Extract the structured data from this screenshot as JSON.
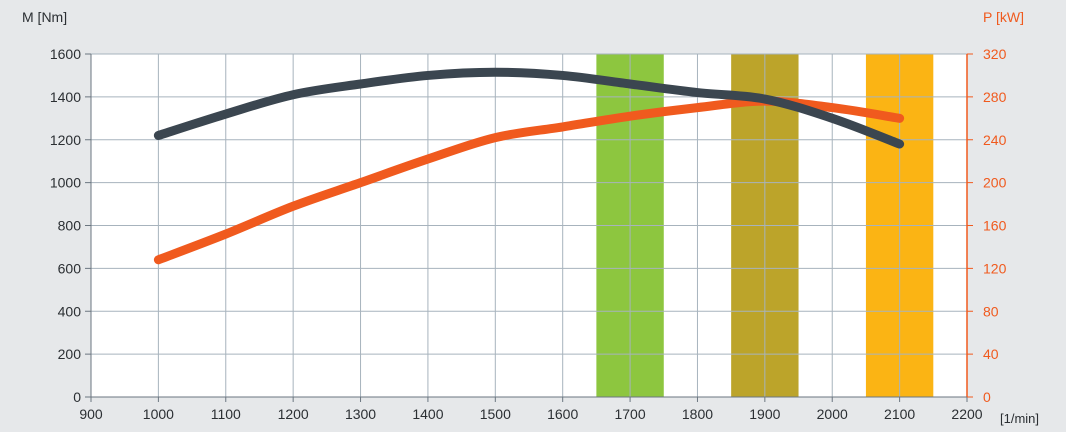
{
  "chart_data": {
    "type": "line",
    "left_axis_label": "M [Nm]",
    "right_axis_label": "P [kW]",
    "x_unit_label": "[1/min]",
    "x_ticks": [
      900,
      1000,
      1100,
      1200,
      1300,
      1400,
      1500,
      1600,
      1700,
      1800,
      1900,
      2000,
      2100,
      2200
    ],
    "y_left_ticks": [
      0,
      200,
      400,
      600,
      800,
      1000,
      1200,
      1400,
      1600
    ],
    "y_right_ticks": [
      0,
      40,
      80,
      120,
      160,
      200,
      240,
      280,
      320
    ],
    "xlim": [
      900,
      2200
    ],
    "ylim_left": [
      0,
      1600
    ],
    "ylim_right": [
      0,
      320
    ],
    "grid": true,
    "series": [
      {
        "axis": "left",
        "color": "#3b4650",
        "x": [
          1000,
          1100,
          1200,
          1300,
          1400,
          1500,
          1600,
          1700,
          1800,
          1900,
          2000,
          2100
        ],
        "values": [
          1220,
          1320,
          1410,
          1460,
          1500,
          1515,
          1500,
          1460,
          1420,
          1390,
          1300,
          1180
        ]
      },
      {
        "axis": "right",
        "color": "#f05a1e",
        "x": [
          1000,
          1100,
          1200,
          1300,
          1400,
          1500,
          1600,
          1700,
          1800,
          1900,
          2000,
          2100
        ],
        "values": [
          128,
          152,
          178,
          200,
          222,
          242,
          252,
          262,
          270,
          276,
          270,
          260
        ]
      }
    ],
    "bands": [
      {
        "from": 1650,
        "to": 1750,
        "color": "#8dc63f"
      },
      {
        "from": 1850,
        "to": 1950,
        "color": "#bca42a"
      },
      {
        "from": 2050,
        "to": 2150,
        "color": "#fbb414"
      }
    ]
  }
}
